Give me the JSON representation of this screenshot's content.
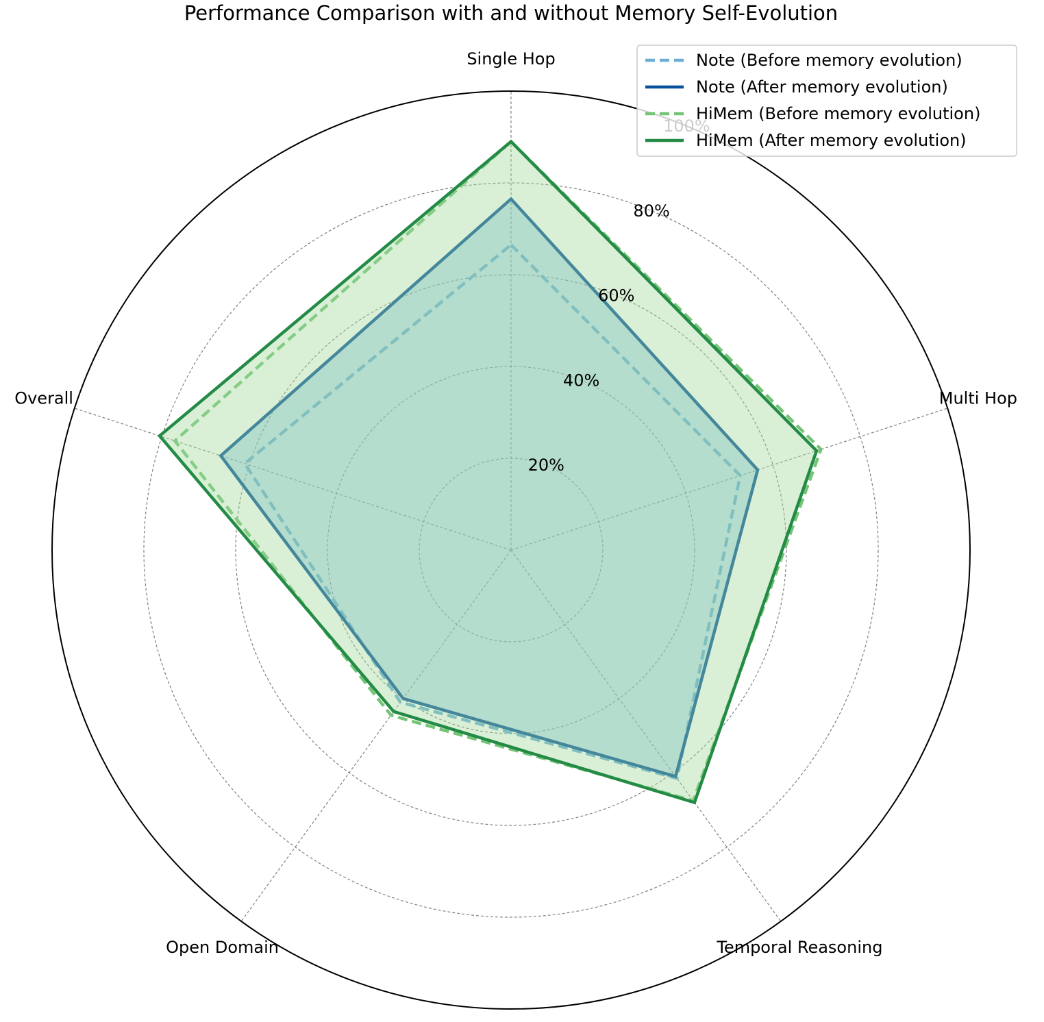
{
  "chart_data": {
    "type": "radar",
    "title": "Performance Comparison with and without Memory Self-Evolution",
    "categories": [
      "Single Hop",
      "Multi Hop",
      "Temporal Reasoning",
      "Open Domain",
      "Overall"
    ],
    "r_ticks": [
      20,
      40,
      60,
      80,
      100
    ],
    "r_tick_labels": [
      "20%",
      "40%",
      "60%",
      "80%",
      "100%"
    ],
    "r_max": 100,
    "grid": true,
    "legend_position": "top-right",
    "series": [
      {
        "name": "Note (Before memory evolution)",
        "values": [
          66.5,
          52.5,
          61.5,
          41.0,
          61.0
        ],
        "color": "#6baed6",
        "dash": true,
        "fill": false
      },
      {
        "name": "Note (After memory evolution)",
        "values": [
          76.5,
          56.5,
          61.0,
          40.0,
          66.5
        ],
        "color": "#08519c",
        "dash": false,
        "fill": true,
        "fill_color": "#6baed6"
      },
      {
        "name": "HiMem (Before memory evolution)",
        "values": [
          89.0,
          71.0,
          67.5,
          44.5,
          77.0
        ],
        "color": "#74c476",
        "dash": true,
        "fill": false
      },
      {
        "name": "HiMem (After memory evolution)",
        "values": [
          89.0,
          70.0,
          68.0,
          43.5,
          80.5
        ],
        "color": "#238b45",
        "dash": false,
        "fill": true,
        "fill_color": "#a1d99b"
      }
    ]
  }
}
